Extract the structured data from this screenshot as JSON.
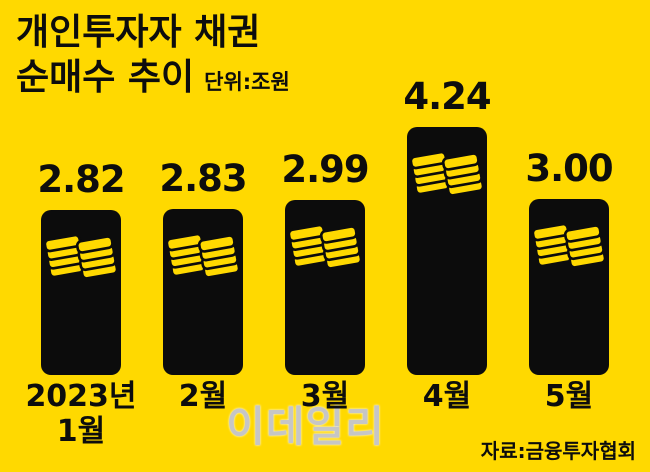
{
  "title": {
    "line1": "개인투자자 채권",
    "line2": "순매수 추이",
    "unit": "단위:조원"
  },
  "source": "자료:금융투자협회",
  "watermark": "이데일리",
  "colors": {
    "background": "#FFD900",
    "bar": "#0c0c0c",
    "bill_fill": "#FFD900",
    "bill_stroke": "#0c0c0c",
    "watermark": "#c6c6c6"
  },
  "chart_data": {
    "type": "bar",
    "title": "개인투자자 채권 순매수 추이",
    "ylabel": "조원",
    "categories": [
      "2023년\n1월",
      "2월",
      "3월",
      "4월",
      "5월"
    ],
    "values": [
      2.82,
      2.83,
      2.99,
      4.24,
      3.0
    ],
    "value_labels": [
      "2.82",
      "2.83",
      "2.99",
      "4.24",
      "3.00"
    ],
    "ylim": [
      0,
      4.5
    ],
    "grid": false,
    "legend": "none"
  }
}
